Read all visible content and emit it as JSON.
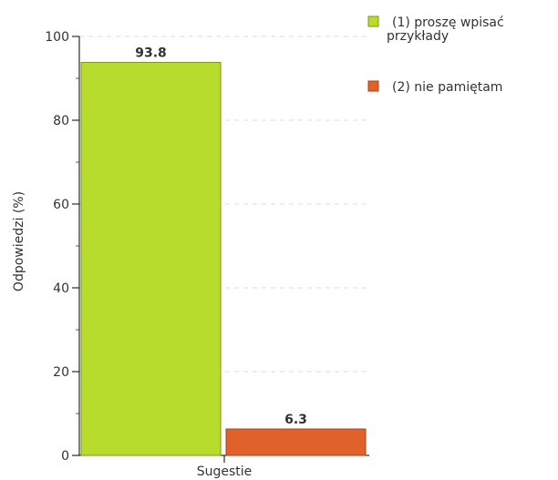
{
  "chart_data": {
    "type": "bar",
    "categories": [
      "Sugestie"
    ],
    "series": [
      {
        "name": "(1) proszę wpisać przykłady",
        "values": [
          93.8
        ],
        "color": "#b8dc2e",
        "border": "#7a9a12"
      },
      {
        "name": "(2) nie pamiętam",
        "values": [
          6.3
        ],
        "color": "#e0622a",
        "border": "#a8401a"
      }
    ],
    "data_labels": [
      "93.8",
      "6.3"
    ],
    "ylabel": "Odpowiedzi (%)",
    "xlabel": "",
    "ylim": [
      0,
      100
    ],
    "yticks": [
      "0",
      "20",
      "40",
      "60",
      "80",
      "100"
    ],
    "grid": true,
    "legend_position": "top-right",
    "legend": [
      {
        "lines": [
          "(1) proszę wpisać",
          "przykłady"
        ]
      },
      {
        "lines": [
          "(2) nie pamiętam"
        ]
      }
    ]
  }
}
